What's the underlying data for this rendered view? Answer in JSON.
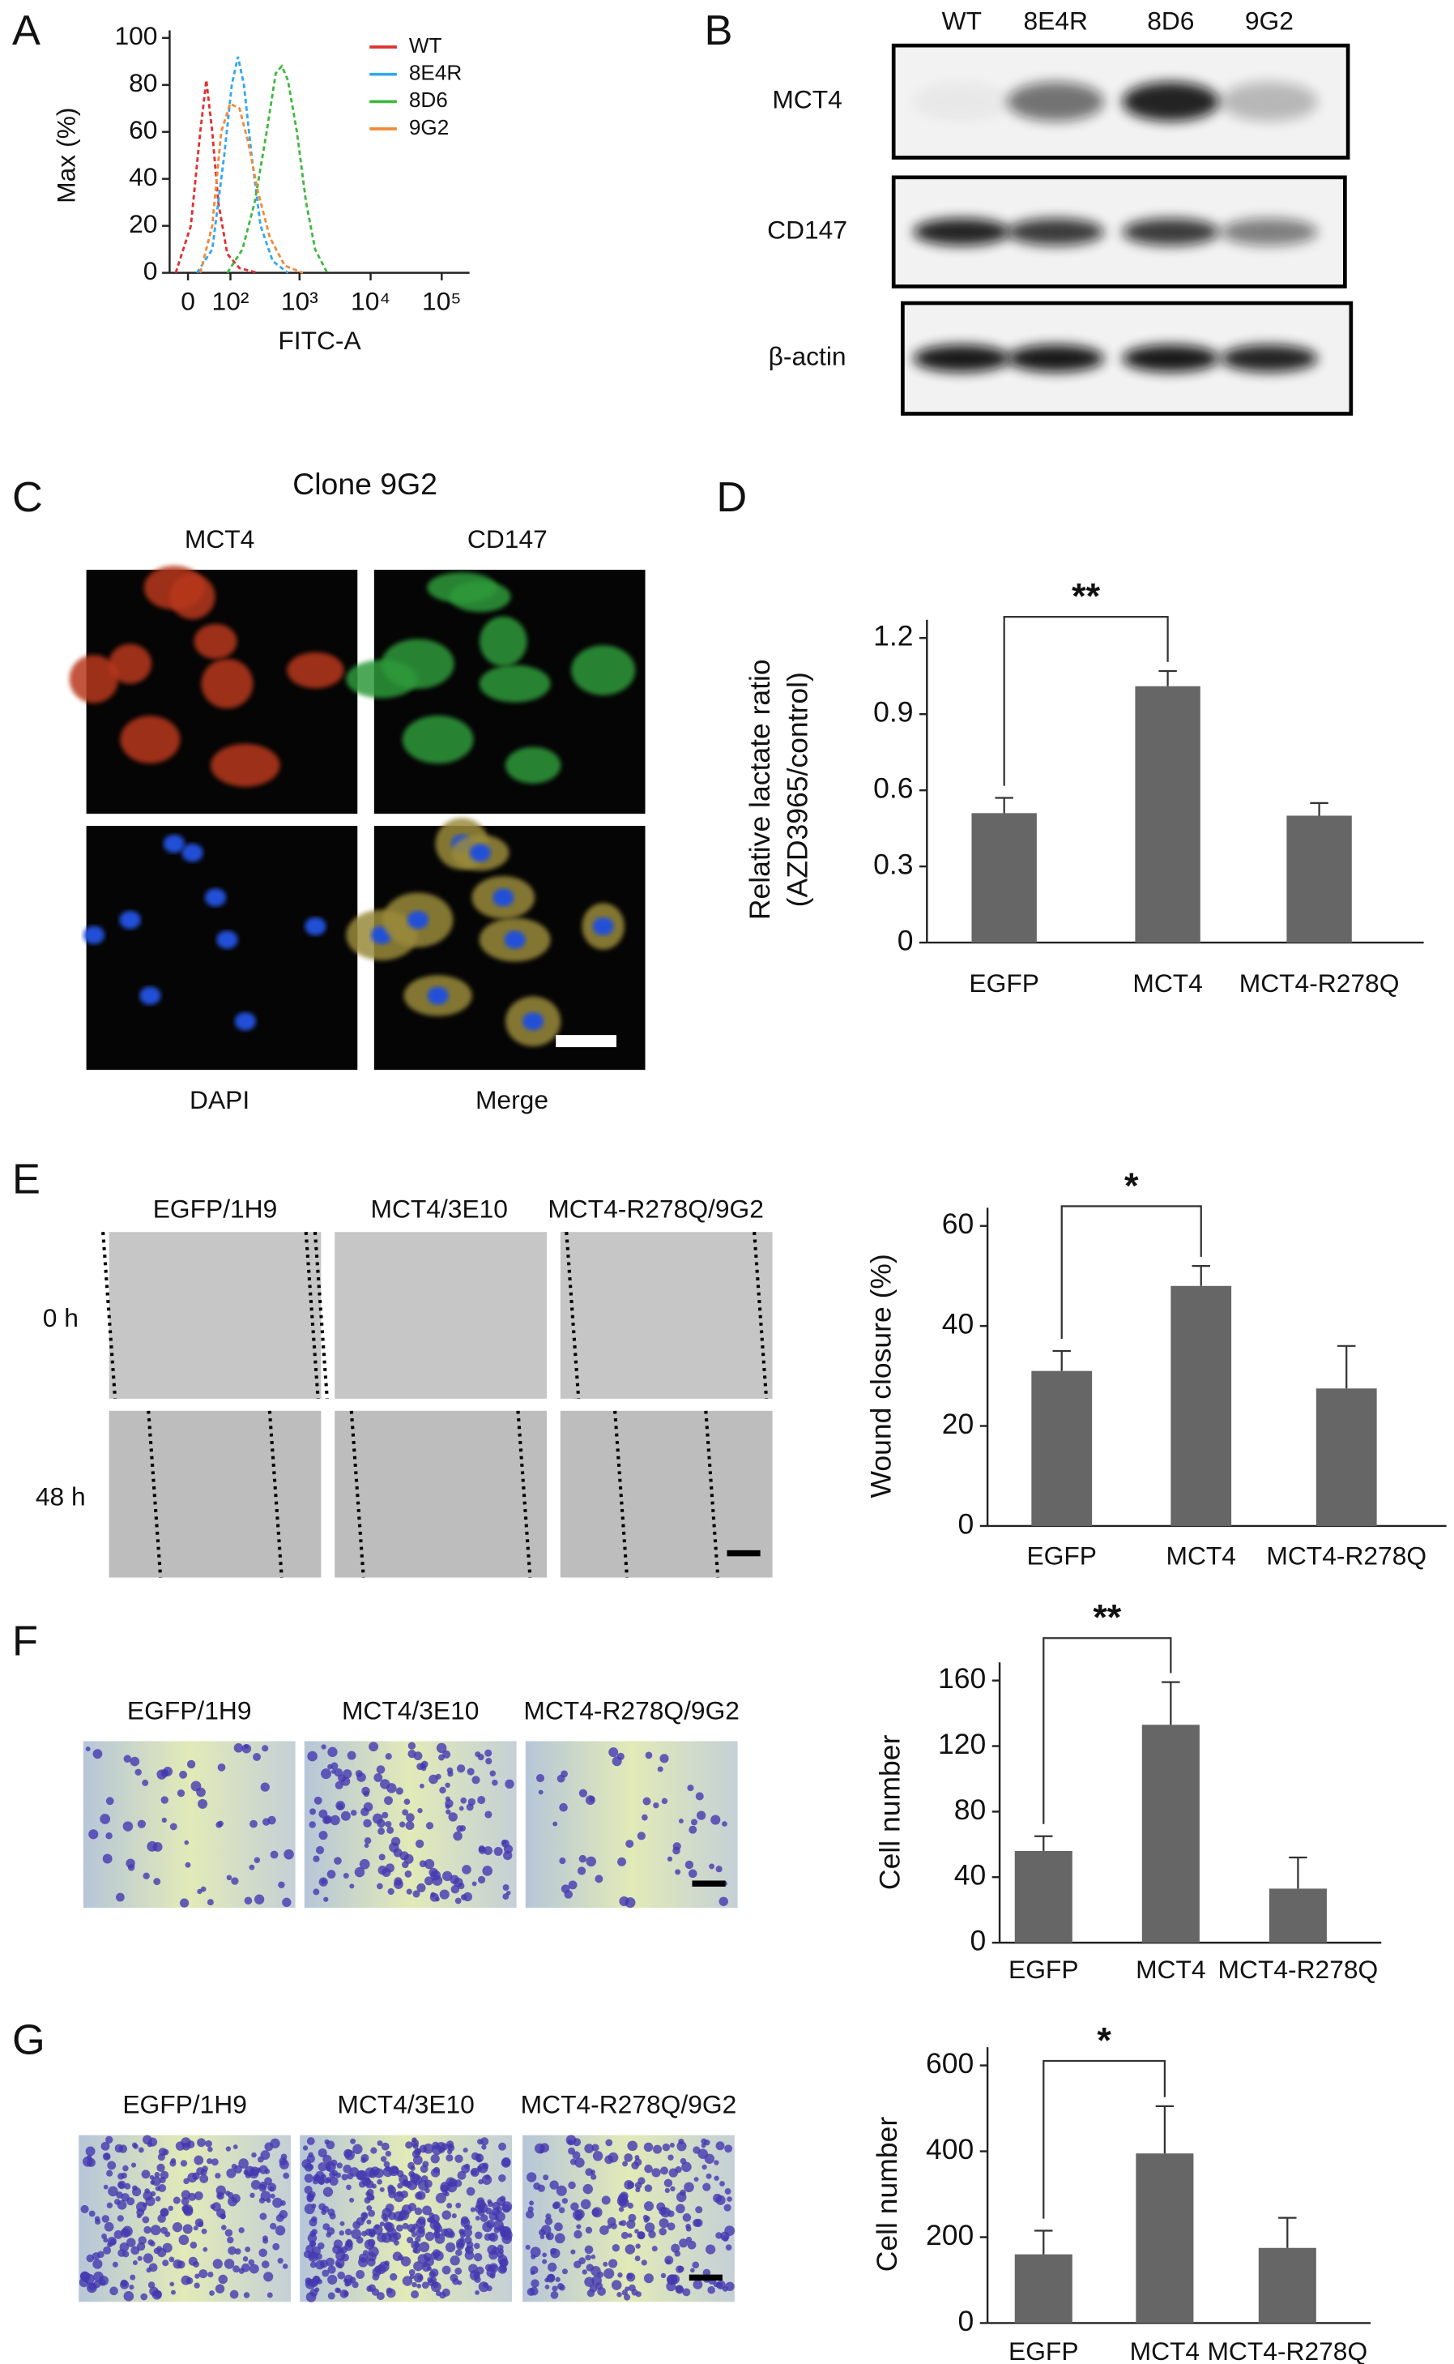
{
  "panel_labels": [
    "A",
    "B",
    "C",
    "D",
    "E",
    "F",
    "G"
  ],
  "blot": {
    "lanes": [
      "WT",
      "8E4R",
      "8D6",
      "9G2"
    ],
    "rows": [
      "MCT4",
      "CD147",
      "β-actin"
    ]
  },
  "micrographs": {
    "title": "Clone 9G2",
    "labels": [
      "MCT4",
      "CD147",
      "DAPI",
      "Merge"
    ]
  },
  "wound_images": {
    "groups": [
      "EGFP/1H9",
      "MCT4/3E10",
      "MCT4-R278Q/9G2"
    ],
    "times": [
      "0 h",
      "48 h"
    ]
  },
  "transwell_F": {
    "groups": [
      "EGFP/1H9",
      "MCT4/3E10",
      "MCT4-R278Q/9G2"
    ]
  },
  "transwell_G": {
    "groups": [
      "EGFP/1H9",
      "MCT4/3E10",
      "MCT4-R278Q/9G2"
    ]
  },
  "chart_data": [
    {
      "type": "line",
      "xlabel": "FITC-A",
      "ylabel": "Max (%)",
      "xscale": "biexponential",
      "line_style": "dashed",
      "legend": "upper right",
      "xlim": [
        -34,
        246000
      ],
      "ylim": [
        0,
        100
      ],
      "xticks": [
        {
          "value": 0,
          "label": "0"
        },
        {
          "value": 100,
          "label": "10²"
        },
        {
          "value": 1000,
          "label": "10³"
        },
        {
          "value": 10000,
          "label": "10⁴"
        },
        {
          "value": 100000,
          "label": "10⁵"
        }
      ],
      "yticks": [
        0,
        20,
        40,
        60,
        80,
        100
      ],
      "series": [
        {
          "name": "WT",
          "color": "#e03030",
          "x": [
            -22,
            5,
            22,
            34,
            47,
            62,
            89,
            138,
            255
          ],
          "values": [
            0,
            20,
            60,
            82,
            60,
            30,
            8,
            2,
            0
          ]
        },
        {
          "name": "8E4R",
          "color": "#30a8ee",
          "x": [
            16,
            47,
            79,
            105,
            131,
            161,
            208,
            281,
            418,
            686
          ],
          "values": [
            0,
            10,
            50,
            80,
            92,
            80,
            50,
            20,
            5,
            0
          ]
        },
        {
          "name": "8D6",
          "color": "#40b840",
          "x": [
            89,
            153,
            231,
            343,
            462,
            562,
            686,
            918,
            1236,
            1658,
            2452
          ],
          "values": [
            0,
            10,
            30,
            60,
            85,
            88,
            82,
            60,
            30,
            10,
            0
          ]
        },
        {
          "name": "9G2",
          "color": "#f08a3a",
          "x": [
            22,
            47,
            70,
            99,
            138,
            188,
            255,
            381,
            621,
            1118
          ],
          "values": [
            0,
            20,
            60,
            72,
            70,
            55,
            35,
            15,
            3,
            0
          ]
        }
      ]
    },
    {
      "type": "bar",
      "ylabel": [
        "Relative lactate ratio",
        "(AZD3965/control)"
      ],
      "categories": [
        "EGFP",
        "MCT4",
        "MCT4-R278Q"
      ],
      "values": [
        0.51,
        1.01,
        0.5
      ],
      "errors": [
        0.06,
        0.06,
        0.05
      ],
      "color": "#666666",
      "ylim": [
        0,
        1.2
      ],
      "yticks": [
        0,
        0.3,
        0.6,
        0.9,
        1.2
      ],
      "significance": {
        "between": [
          "EGFP",
          "MCT4"
        ],
        "label": "**"
      }
    },
    {
      "type": "bar",
      "ylabel": "Wound closure (%)",
      "categories": [
        "EGFP",
        "MCT4",
        "MCT4-R278Q"
      ],
      "values": [
        31,
        48,
        27.5
      ],
      "errors": [
        4,
        4,
        8.5
      ],
      "color": "#666666",
      "ylim": [
        0,
        60
      ],
      "yticks": [
        0,
        20,
        40,
        60
      ],
      "significance": {
        "between": [
          "EGFP",
          "MCT4"
        ],
        "label": "*"
      }
    },
    {
      "type": "bar",
      "ylabel": "Cell number",
      "categories": [
        "EGFP",
        "MCT4",
        "MCT4-R278Q"
      ],
      "values": [
        56,
        133,
        33
      ],
      "errors": [
        9,
        26,
        19
      ],
      "color": "#666666",
      "ylim": [
        0,
        160
      ],
      "yticks": [
        0,
        40,
        80,
        120,
        160
      ],
      "significance": {
        "between": [
          "EGFP",
          "MCT4"
        ],
        "label": "**"
      }
    },
    {
      "type": "bar",
      "ylabel": "Cell number",
      "categories": [
        "EGFP",
        "MCT4",
        "MCT4-R278Q"
      ],
      "values": [
        160,
        395,
        175
      ],
      "errors": [
        55,
        110,
        70
      ],
      "color": "#666666",
      "ylim": [
        0,
        600
      ],
      "yticks": [
        0,
        200,
        400,
        600
      ],
      "significance": {
        "between": [
          "EGFP",
          "MCT4"
        ],
        "label": "*"
      }
    }
  ]
}
